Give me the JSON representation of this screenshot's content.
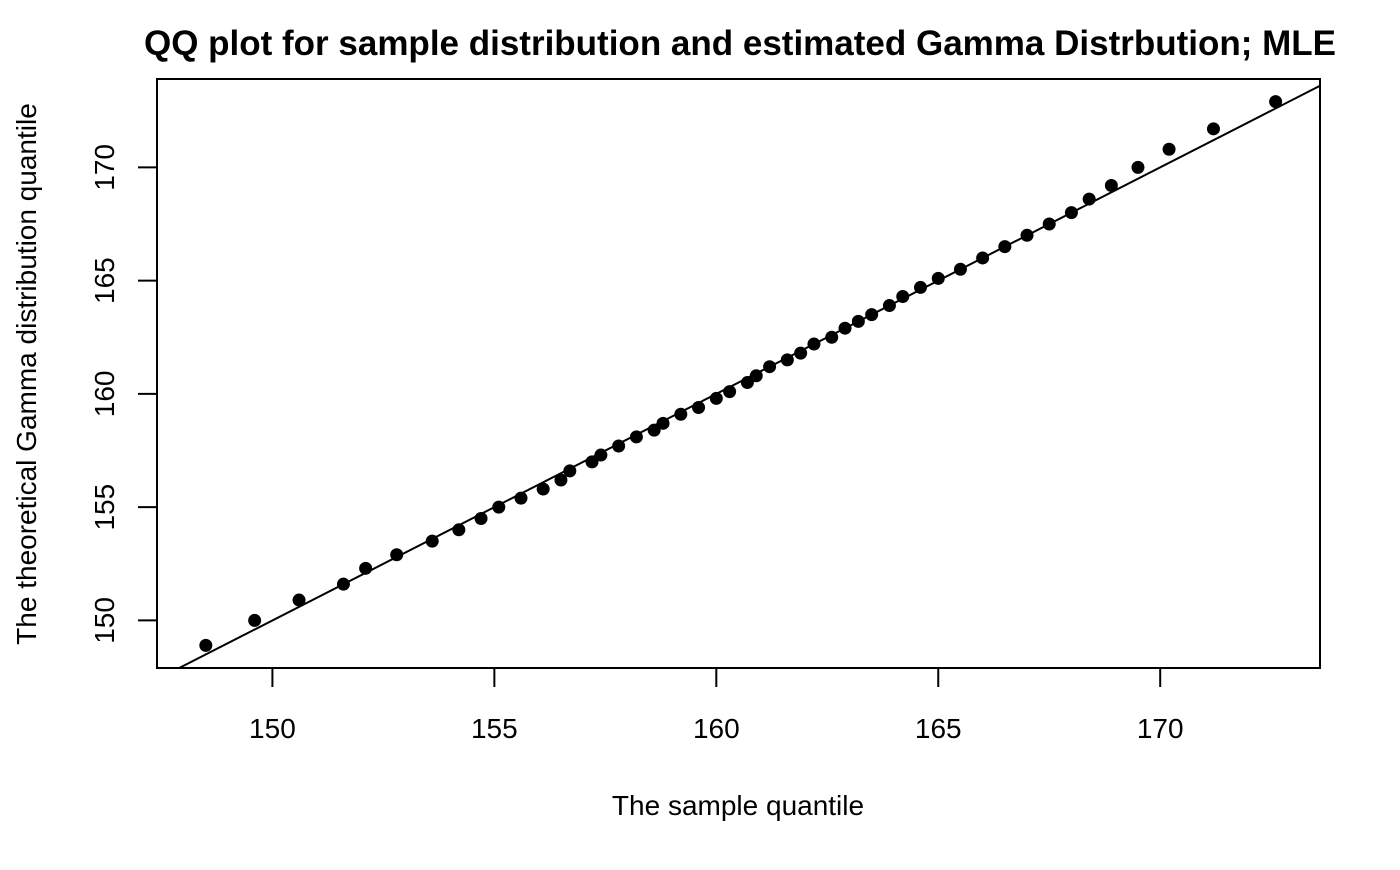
{
  "chart_data": {
    "type": "scatter",
    "title": "QQ plot for sample distribution and estimated Gamma Distrbution; MLE",
    "xlabel": "The sample quantile",
    "ylabel": "The theoretical Gamma distribution quantile",
    "xlim": [
      147.4,
      173.6
    ],
    "ylim": [
      147.9,
      173.9
    ],
    "x_ticks": [
      150,
      155,
      160,
      165,
      170
    ],
    "x_tick_labels": [
      "150",
      "155",
      "160",
      "165",
      "170"
    ],
    "y_ticks": [
      150,
      155,
      160,
      165,
      170
    ],
    "y_tick_labels": [
      "150",
      "155",
      "160",
      "165",
      "170"
    ],
    "grid": false,
    "legend": "none",
    "reference_line": {
      "slope": 1,
      "intercept": 0
    },
    "points": [
      [
        148.5,
        148.9
      ],
      [
        149.6,
        150.0
      ],
      [
        150.6,
        150.9
      ],
      [
        151.6,
        151.6
      ],
      [
        152.1,
        152.3
      ],
      [
        152.8,
        152.9
      ],
      [
        153.6,
        153.5
      ],
      [
        154.2,
        154.0
      ],
      [
        154.7,
        154.5
      ],
      [
        155.1,
        155.0
      ],
      [
        155.6,
        155.4
      ],
      [
        156.1,
        155.8
      ],
      [
        156.5,
        156.2
      ],
      [
        156.7,
        156.6
      ],
      [
        157.2,
        157.0
      ],
      [
        157.4,
        157.3
      ],
      [
        157.8,
        157.7
      ],
      [
        158.2,
        158.1
      ],
      [
        158.6,
        158.4
      ],
      [
        158.8,
        158.7
      ],
      [
        159.2,
        159.1
      ],
      [
        159.6,
        159.4
      ],
      [
        160.0,
        159.8
      ],
      [
        160.3,
        160.1
      ],
      [
        160.7,
        160.5
      ],
      [
        160.9,
        160.8
      ],
      [
        161.2,
        161.2
      ],
      [
        161.6,
        161.5
      ],
      [
        161.9,
        161.8
      ],
      [
        162.2,
        162.2
      ],
      [
        162.6,
        162.5
      ],
      [
        162.9,
        162.9
      ],
      [
        163.2,
        163.2
      ],
      [
        163.5,
        163.5
      ],
      [
        163.9,
        163.9
      ],
      [
        164.2,
        164.3
      ],
      [
        164.6,
        164.7
      ],
      [
        165.0,
        165.1
      ],
      [
        165.5,
        165.5
      ],
      [
        166.0,
        166.0
      ],
      [
        166.5,
        166.5
      ],
      [
        167.0,
        167.0
      ],
      [
        167.5,
        167.5
      ],
      [
        168.0,
        168.0
      ],
      [
        168.4,
        168.6
      ],
      [
        168.9,
        169.2
      ],
      [
        169.5,
        170.0
      ],
      [
        170.2,
        170.8
      ],
      [
        171.2,
        171.7
      ],
      [
        172.6,
        172.9
      ]
    ]
  }
}
